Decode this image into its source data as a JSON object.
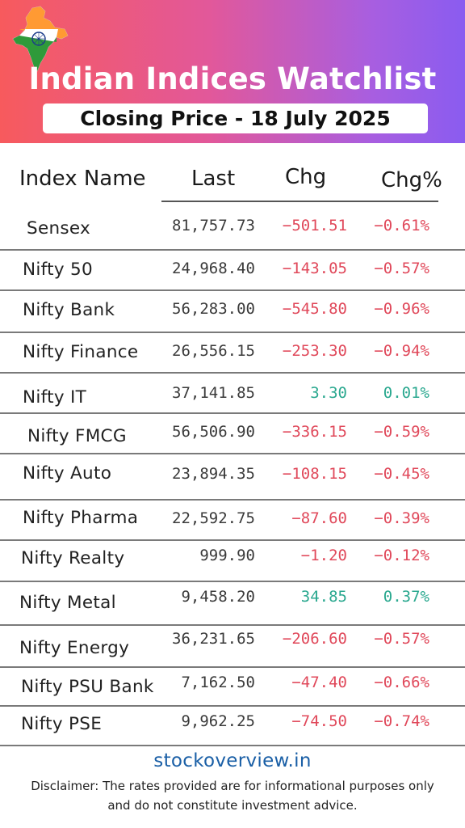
{
  "header": {
    "title": "Indian Indices Watchlist",
    "subtitle": "Closing Price - 18 July 2025",
    "colors": {
      "gradient_start": "#f75a5d",
      "gradient_mid": "#e2589a",
      "gradient_end": "#8a5cf0"
    },
    "logo_icon": "india-map-flag-icon"
  },
  "table": {
    "columns": [
      "Index Name",
      "Last",
      "Chg",
      "Chg%"
    ],
    "rows": [
      {
        "name": "Sensex",
        "last": "81,757.73",
        "chg": "−501.51",
        "pct": "−0.61%",
        "trend": "neg"
      },
      {
        "name": "Nifty 50",
        "last": "24,968.40",
        "chg": "−143.05",
        "pct": "−0.57%",
        "trend": "neg"
      },
      {
        "name": "Nifty Bank",
        "last": "56,283.00",
        "chg": "−545.80",
        "pct": "−0.96%",
        "trend": "neg"
      },
      {
        "name": "Nifty Finance",
        "last": "26,556.15",
        "chg": "−253.30",
        "pct": "−0.94%",
        "trend": "neg"
      },
      {
        "name": "Nifty IT",
        "last": "37,141.85",
        "chg": "3.30",
        "pct": "0.01%",
        "trend": "pos"
      },
      {
        "name": "Nifty FMCG",
        "last": "56,506.90",
        "chg": "−336.15",
        "pct": "−0.59%",
        "trend": "neg"
      },
      {
        "name": "Nifty Auto",
        "last": "23,894.35",
        "chg": "−108.15",
        "pct": "−0.45%",
        "trend": "neg"
      },
      {
        "name": "Nifty Pharma",
        "last": "22,592.75",
        "chg": "−87.60",
        "pct": "−0.39%",
        "trend": "neg"
      },
      {
        "name": "Nifty Realty",
        "last": "999.90",
        "chg": "−1.20",
        "pct": "−0.12%",
        "trend": "neg"
      },
      {
        "name": "Nifty Metal",
        "last": "9,458.20",
        "chg": "34.85",
        "pct": "0.37%",
        "trend": "pos"
      },
      {
        "name": "Nifty Energy",
        "last": "36,231.65",
        "chg": "−206.60",
        "pct": "−0.57%",
        "trend": "neg"
      },
      {
        "name": "Nifty PSU Bank",
        "last": "7,162.50",
        "chg": "−47.40",
        "pct": "−0.66%",
        "trend": "neg"
      },
      {
        "name": "Nifty PSE",
        "last": "9,962.25",
        "chg": "−74.50",
        "pct": "−0.74%",
        "trend": "neg"
      }
    ],
    "colors": {
      "negative": "#e0485a",
      "positive": "#2aa88f"
    }
  },
  "footer": {
    "site": "stockoverview.in",
    "disclaimer": "Disclaimer: The rates provided are for informational purposes only and do not constitute investment advice."
  }
}
